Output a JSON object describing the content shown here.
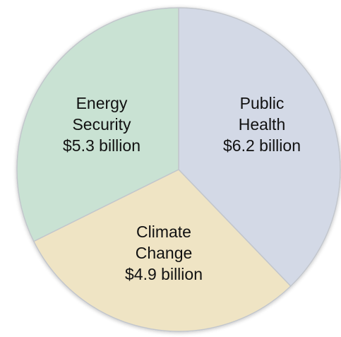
{
  "chart_data": {
    "type": "pie",
    "slices": [
      {
        "key": "public-health",
        "lines": [
          "Public",
          "Health",
          "$6.2 billion"
        ],
        "value": 6.2,
        "color": "#d3d9e6"
      },
      {
        "key": "climate-change",
        "lines": [
          "Climate",
          "Change",
          "$4.9 billion"
        ],
        "value": 4.9,
        "color": "#efe4c4"
      },
      {
        "key": "energy-security",
        "lines": [
          "Energy",
          "Security",
          "$5.3 billion"
        ],
        "value": 5.3,
        "color": "#c9e2d3"
      }
    ],
    "start_angle_deg": 0,
    "direction": "clockwise",
    "edge_color": "#c2c6cc",
    "legend": "none"
  }
}
